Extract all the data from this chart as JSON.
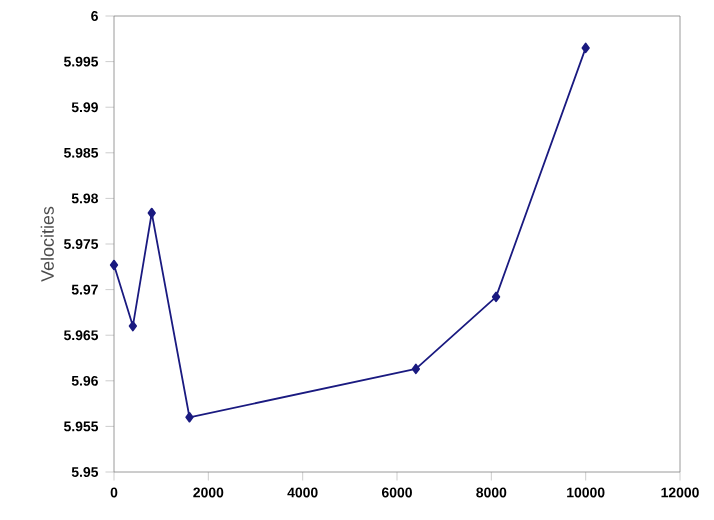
{
  "chart_data": {
    "type": "line",
    "ylabel": "Velocities",
    "x": [
      0,
      400,
      800,
      1600,
      6400,
      8100,
      10000
    ],
    "series": [
      {
        "color": "#1a1a80",
        "values": [
          5.9727,
          5.966,
          5.9784,
          5.956,
          5.9613,
          5.9692,
          5.9965
        ]
      }
    ],
    "xlim": [
      0,
      12000
    ],
    "xticks": [
      0,
      2000,
      4000,
      6000,
      8000,
      10000,
      12000
    ],
    "ylim": [
      5.95,
      6
    ],
    "yticks": [
      5.95,
      5.955,
      5.96,
      5.965,
      5.97,
      5.975,
      5.98,
      5.985,
      5.99,
      5.995,
      6
    ],
    "marker": "diamond",
    "line_style": "solid"
  }
}
